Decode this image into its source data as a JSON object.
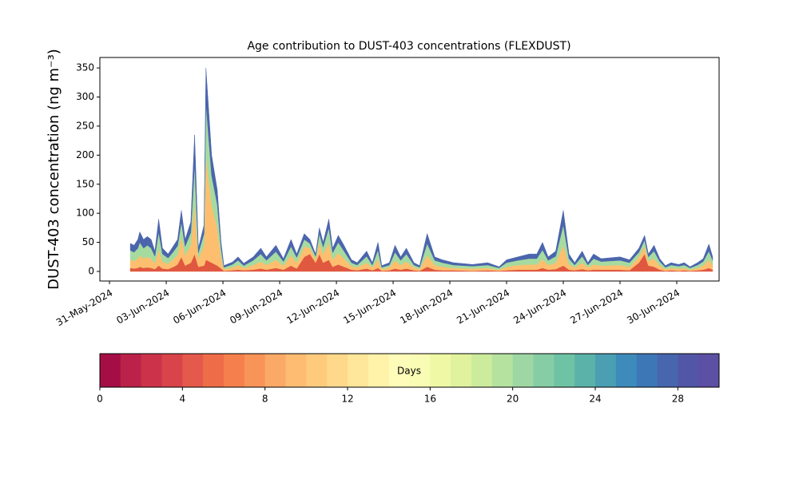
{
  "chart_data": {
    "type": "stacked_area",
    "title": "Age contribution to DUST-403 concentrations (FLEXDUST)",
    "ylabel": "DUST-403 concentration (ng m⁻³)",
    "x": [
      1.1,
      1.3,
      1.5,
      1.6,
      1.8,
      2.0,
      2.2,
      2.4,
      2.6,
      2.8,
      3.1,
      3.4,
      3.6,
      3.8,
      4.0,
      4.3,
      4.5,
      4.7,
      5.0,
      5.1,
      5.4,
      5.7,
      5.9,
      6.05,
      6.5,
      6.8,
      7.1,
      7.6,
      8.0,
      8.3,
      8.8,
      9.2,
      9.6,
      9.9,
      10.3,
      10.6,
      10.9,
      11.1,
      11.3,
      11.6,
      11.8,
      12.1,
      12.4,
      12.8,
      13.1,
      13.6,
      13.9,
      14.2,
      14.4,
      14.8,
      15.1,
      15.4,
      15.7,
      16.1,
      16.4,
      16.8,
      17.2,
      17.6,
      18.2,
      19.2,
      20.0,
      20.6,
      21.0,
      21.6,
      22.2,
      22.6,
      22.9,
      23.2,
      23.6,
      24.0,
      24.3,
      24.6,
      25.0,
      25.3,
      25.6,
      26.0,
      27.0,
      27.5,
      28.0,
      28.3,
      28.5,
      28.8,
      29.1,
      29.4,
      29.7,
      30.1,
      30.4,
      30.7,
      31.1,
      31.4,
      31.7,
      31.9
    ],
    "series": [
      {
        "color": "#e0583f",
        "values": [
          6,
          5,
          6,
          8,
          6,
          7,
          6,
          4,
          10,
          5,
          4,
          8,
          12,
          25,
          10,
          15,
          30,
          8,
          10,
          20,
          15,
          10,
          5,
          1,
          2,
          3,
          2,
          3,
          5,
          3,
          6,
          3,
          10,
          5,
          25,
          30,
          15,
          30,
          15,
          20,
          8,
          12,
          8,
          3,
          2,
          5,
          2,
          6,
          1,
          2,
          5,
          3,
          5,
          2,
          1,
          8,
          3,
          2,
          2,
          1,
          2,
          1,
          2,
          3,
          3,
          3,
          6,
          3,
          4,
          10,
          3,
          2,
          4,
          2,
          3,
          3,
          3,
          2,
          15,
          30,
          10,
          8,
          3,
          1,
          2,
          1,
          2,
          1,
          2,
          3,
          6,
          3
        ]
      },
      {
        "color": "#fdbf6f",
        "values": [
          14,
          13,
          16,
          20,
          16,
          18,
          16,
          10,
          28,
          12,
          9,
          14,
          17,
          35,
          18,
          30,
          90,
          14,
          35,
          180,
          100,
          65,
          20,
          3,
          5,
          8,
          4,
          8,
          12,
          8,
          14,
          7,
          18,
          10,
          18,
          10,
          6,
          20,
          15,
          30,
          12,
          20,
          14,
          6,
          5,
          10,
          5,
          15,
          3,
          5,
          14,
          8,
          12,
          5,
          3,
          20,
          8,
          6,
          4,
          4,
          4,
          2,
          6,
          8,
          9,
          9,
          15,
          8,
          11,
          35,
          9,
          5,
          11,
          5,
          9,
          7,
          8,
          6,
          10,
          14,
          8,
          14,
          7,
          3,
          4,
          4,
          4,
          2,
          4,
          7,
          14,
          8
        ]
      },
      {
        "color": "#a6dba0",
        "values": [
          16,
          15,
          18,
          22,
          18,
          20,
          18,
          12,
          30,
          13,
          10,
          13,
          15,
          25,
          15,
          22,
          65,
          10,
          20,
          90,
          50,
          40,
          15,
          3,
          5,
          8,
          4,
          8,
          13,
          8,
          14,
          7,
          15,
          9,
          12,
          8,
          5,
          15,
          12,
          25,
          12,
          18,
          13,
          6,
          4,
          11,
          4,
          16,
          3,
          4,
          14,
          8,
          13,
          4,
          3,
          20,
          8,
          7,
          5,
          4,
          5,
          3,
          7,
          8,
          10,
          10,
          16,
          8,
          11,
          35,
          10,
          4,
          11,
          4,
          10,
          7,
          8,
          7,
          8,
          10,
          7,
          13,
          7,
          3,
          5,
          4,
          5,
          3,
          5,
          7,
          15,
          8
        ]
      },
      {
        "color": "#4b65ad",
        "values": [
          12,
          12,
          15,
          18,
          15,
          15,
          15,
          9,
          22,
          10,
          7,
          10,
          11,
          20,
          12,
          18,
          50,
          8,
          15,
          60,
          35,
          25,
          10,
          3,
          4,
          6,
          4,
          6,
          10,
          6,
          11,
          5,
          12,
          6,
          10,
          7,
          4,
          10,
          8,
          15,
          8,
          12,
          10,
          5,
          4,
          9,
          4,
          13,
          3,
          4,
          12,
          6,
          10,
          4,
          3,
          17,
          6,
          5,
          4,
          3,
          4,
          2,
          5,
          6,
          8,
          8,
          13,
          6,
          9,
          25,
          8,
          4,
          9,
          4,
          8,
          5,
          6,
          5,
          7,
          8,
          5,
          10,
          5,
          3,
          4,
          3,
          4,
          2,
          4,
          5,
          12,
          6
        ]
      }
    ],
    "xlim": [
      -0.51,
      32.24
    ],
    "xticks": [
      {
        "value": 0,
        "label": "31-May-2024"
      },
      {
        "value": 3,
        "label": "03-Jun-2024"
      },
      {
        "value": 6,
        "label": "06-Jun-2024"
      },
      {
        "value": 9,
        "label": "09-Jun-2024"
      },
      {
        "value": 12,
        "label": "12-Jun-2024"
      },
      {
        "value": 15,
        "label": "15-Jun-2024"
      },
      {
        "value": 18,
        "label": "18-Jun-2024"
      },
      {
        "value": 21,
        "label": "21-Jun-2024"
      },
      {
        "value": 24,
        "label": "24-Jun-2024"
      },
      {
        "value": 27,
        "label": "27-Jun-2024"
      },
      {
        "value": 30,
        "label": "30-Jun-2024"
      }
    ],
    "ylim": [
      -16.5,
      368
    ],
    "yticks": [
      0,
      50,
      100,
      150,
      200,
      250,
      300,
      350
    ],
    "colorbar": {
      "label": "Days",
      "lim": [
        0,
        30
      ],
      "ticks": [
        0,
        4,
        8,
        12,
        16,
        20,
        24,
        28
      ],
      "colors": [
        "#a50e45",
        "#bb2249",
        "#cc334a",
        "#d9444a",
        "#e4594b",
        "#ee6d48",
        "#f5804d",
        "#f89458",
        "#fba966",
        "#fdbc71",
        "#fecb7d",
        "#fed88b",
        "#fee69a",
        "#fff2a9",
        "#fffbb8",
        "#f8fcb4",
        "#eef8a5",
        "#e0f29d",
        "#cceb9d",
        "#b6e2a0",
        "#9fd7a4",
        "#86cda5",
        "#6fc3a5",
        "#5ab2a8",
        "#4a9fb2",
        "#3d8bba",
        "#3e77b6",
        "#4866ae",
        "#5157a6",
        "#5b50a3"
      ]
    }
  }
}
